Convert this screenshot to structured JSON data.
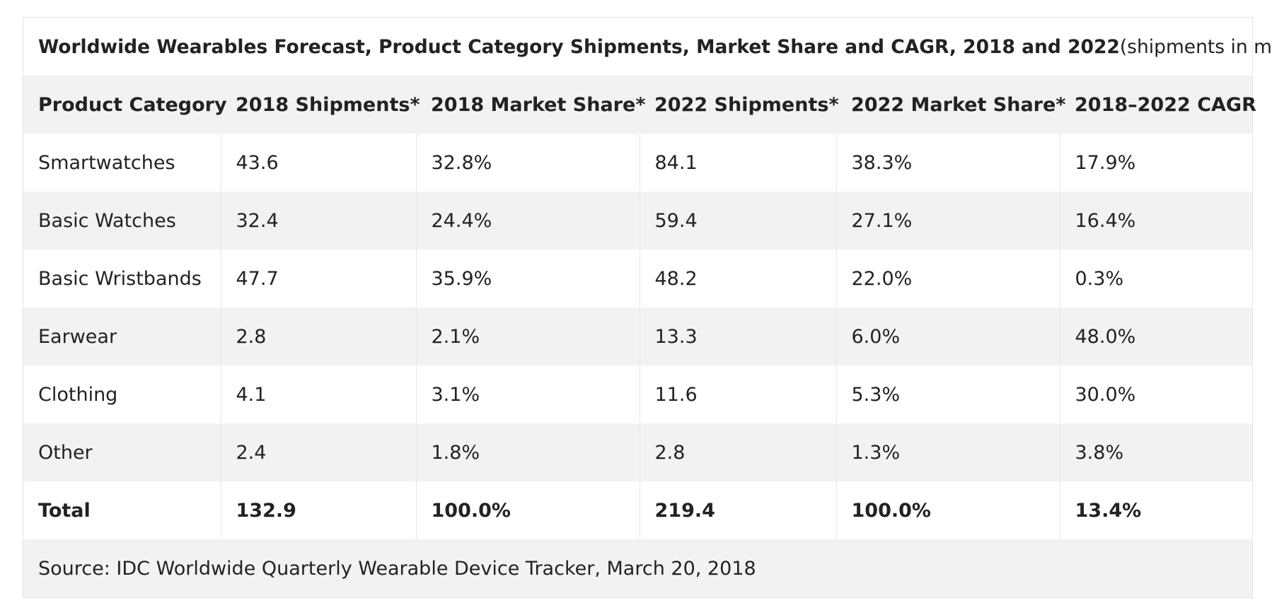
{
  "title": {
    "bold": "Worldwide Wearables Forecast, Product Category Shipments, Market Share and CAGR, 2018 and 2022",
    "normal": " (shipments in millions)"
  },
  "columns": [
    "Product Category",
    "2018 Shipments*",
    "2018 Market Share*",
    "2022 Shipments*",
    "2022 Market Share*",
    "2018–2022 CAGR"
  ],
  "rows": [
    [
      "Smartwatches",
      "43.6",
      "32.8%",
      "84.1",
      "38.3%",
      "17.9%"
    ],
    [
      "Basic Watches",
      "32.4",
      "24.4%",
      "59.4",
      "27.1%",
      "16.4%"
    ],
    [
      "Basic Wristbands",
      "47.7",
      "35.9%",
      "48.2",
      "22.0%",
      "0.3%"
    ],
    [
      "Earwear",
      "2.8",
      "2.1%",
      "13.3",
      "6.0%",
      "48.0%"
    ],
    [
      "Clothing",
      "4.1",
      "3.1%",
      "11.6",
      "5.3%",
      "30.0%"
    ],
    [
      "Other",
      "2.4",
      "1.8%",
      "2.8",
      "1.3%",
      "3.8%"
    ]
  ],
  "total": [
    "Total",
    "132.9",
    "100.0%",
    "219.4",
    "100.0%",
    "13.4%"
  ],
  "source": "Source: IDC Worldwide Quarterly Wearable Device Tracker, March 20, 2018"
}
